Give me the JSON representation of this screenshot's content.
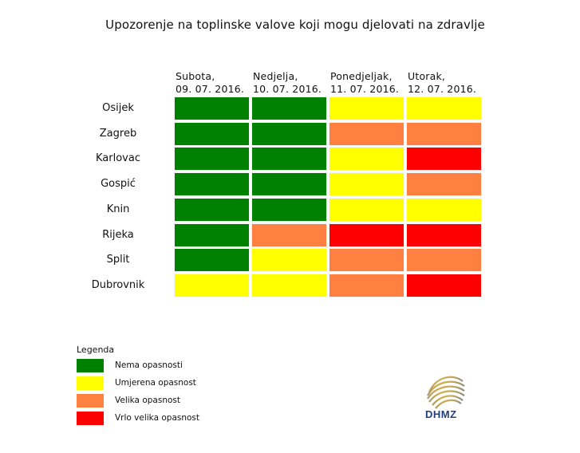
{
  "chart_data": {
    "type": "heatmap",
    "title": "Upozorenje na toplinske valove koji mogu djelovati na zdravlje",
    "columns": [
      {
        "day": "Subota,",
        "date": "09. 07. 2016."
      },
      {
        "day": "Nedjelja,",
        "date": "10. 07. 2016."
      },
      {
        "day": "Ponedjeljak,",
        "date": "11. 07. 2016."
      },
      {
        "day": "Utorak,",
        "date": "12. 07. 2016."
      }
    ],
    "rows": [
      "Osijek",
      "Zagreb",
      "Karlovac",
      "Gospić",
      "Knin",
      "Rijeka",
      "Split",
      "Dubrovnik"
    ],
    "values": [
      [
        0,
        0,
        1,
        1
      ],
      [
        0,
        0,
        2,
        2
      ],
      [
        0,
        0,
        1,
        3
      ],
      [
        0,
        0,
        1,
        2
      ],
      [
        0,
        0,
        1,
        1
      ],
      [
        0,
        2,
        3,
        3
      ],
      [
        0,
        1,
        2,
        2
      ],
      [
        1,
        1,
        2,
        3
      ]
    ],
    "levels": [
      {
        "level": 0,
        "label": "Nema opasnosti",
        "color": "#008000"
      },
      {
        "level": 1,
        "label": "Umjerena opasnost",
        "color": "#ffff00"
      },
      {
        "level": 2,
        "label": "Velika opasnost",
        "color": "#ff8040"
      },
      {
        "level": 3,
        "label": "Vrlo velika opasnost",
        "color": "#ff0000"
      }
    ],
    "legend_title": "Legenda",
    "legend_placement": "bottom-left"
  },
  "logo": {
    "text": "DHMZ"
  }
}
